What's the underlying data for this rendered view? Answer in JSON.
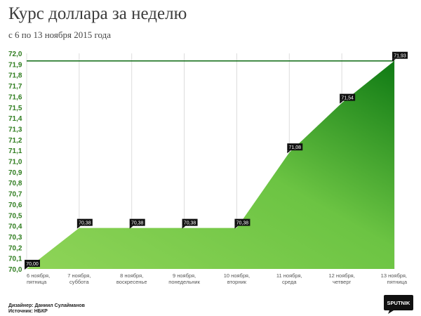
{
  "header": {
    "title": "Курс доллара за неделю",
    "subtitle": "с 6 по 13 ноября 2015 года"
  },
  "footer": {
    "designer": "Дизайнер: Даниил Сулайманов",
    "source": "Источник: НБКР"
  },
  "logo": {
    "text": "SPUTNIK",
    "icon": "sputnik-logo"
  },
  "colors": {
    "fill_light": "#8fd458",
    "fill_dark": "#0f7a14",
    "reference_line": "#0c6a12",
    "axis_label": "#2f7d1f",
    "grid": "#dcdcdc",
    "label_box": "#111111"
  },
  "chart_data": {
    "type": "area",
    "title": "Курс доллара за неделю",
    "subtitle": "с 6 по 13 ноября 2015 года",
    "categories": [
      "6 ноября,\nпятница",
      "7 ноября,\nсуббота",
      "8 ноября,\nвоскресенье",
      "9 ноября,\nпонедельник",
      "10 ноября,\nвторник",
      "11 ноября,\nсреда",
      "12 ноября,\nчетверг",
      "13 ноября,\nпятница"
    ],
    "values": [
      70.0,
      70.38,
      70.38,
      70.38,
      70.38,
      71.08,
      71.54,
      71.93
    ],
    "data_labels": [
      "70,00",
      "70,38",
      "70,38",
      "70,38",
      "70,38",
      "71,08",
      "71,54",
      "71,93"
    ],
    "reference_line": 71.93,
    "ylim": [
      70.0,
      72.0
    ],
    "yticks": [
      "70,0",
      "70,1",
      "70,2",
      "70,3",
      "70,4",
      "70,5",
      "70,6",
      "70,7",
      "70,8",
      "70,9",
      "71,0",
      "71,1",
      "71,2",
      "71,3",
      "71,4",
      "71,5",
      "71,6",
      "71,7",
      "71,8",
      "71,9",
      "72,0"
    ],
    "xlabel": "",
    "ylabel": "",
    "grid": "vertical",
    "legend": "none"
  }
}
